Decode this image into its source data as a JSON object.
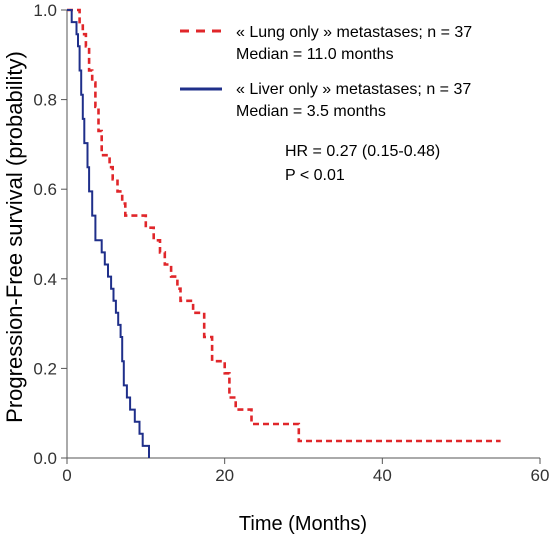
{
  "chart_data": {
    "type": "line",
    "subtype": "kaplan-meier-step",
    "xlabel": "Time (Months)",
    "ylabel": "Progression-Free survival  (probability)",
    "xlim": [
      0,
      60
    ],
    "ylim": [
      0,
      1.0
    ],
    "x_ticks": [
      0,
      20,
      40,
      60
    ],
    "x_tick_labels": [
      "0",
      "20",
      "40",
      "60"
    ],
    "y_ticks": [
      0.0,
      0.2,
      0.4,
      0.6,
      0.8,
      1.0
    ],
    "y_tick_labels": [
      "0.0",
      "0.2",
      "0.4",
      "0.6",
      "0.8",
      "1.0"
    ],
    "grid": false,
    "legend_position": "top-right",
    "series": [
      {
        "name": "« Lung only » metastases; n = 37",
        "median_label": "Median = 11.0 months",
        "color": "#e0262a",
        "line_style": "dashed",
        "points": [
          [
            0,
            1.0
          ],
          [
            1.6,
            1.0
          ],
          [
            1.6,
            0.973
          ],
          [
            2.0,
            0.973
          ],
          [
            2.0,
            0.946
          ],
          [
            2.4,
            0.946
          ],
          [
            2.4,
            0.919
          ],
          [
            2.8,
            0.919
          ],
          [
            2.8,
            0.865
          ],
          [
            3.2,
            0.865
          ],
          [
            3.2,
            0.838
          ],
          [
            3.6,
            0.838
          ],
          [
            3.6,
            0.784
          ],
          [
            4.0,
            0.784
          ],
          [
            4.0,
            0.73
          ],
          [
            4.4,
            0.73
          ],
          [
            4.4,
            0.676
          ],
          [
            5.4,
            0.676
          ],
          [
            5.4,
            0.649
          ],
          [
            5.8,
            0.649
          ],
          [
            5.8,
            0.622
          ],
          [
            6.4,
            0.622
          ],
          [
            6.4,
            0.595
          ],
          [
            7.0,
            0.595
          ],
          [
            7.0,
            0.568
          ],
          [
            7.4,
            0.568
          ],
          [
            7.4,
            0.541
          ],
          [
            10.0,
            0.541
          ],
          [
            10.0,
            0.514
          ],
          [
            11.0,
            0.514
          ],
          [
            11.0,
            0.486
          ],
          [
            11.8,
            0.486
          ],
          [
            11.8,
            0.459
          ],
          [
            12.4,
            0.459
          ],
          [
            12.4,
            0.432
          ],
          [
            13.2,
            0.432
          ],
          [
            13.2,
            0.405
          ],
          [
            14.0,
            0.405
          ],
          [
            14.0,
            0.378
          ],
          [
            14.4,
            0.378
          ],
          [
            14.4,
            0.351
          ],
          [
            16.0,
            0.351
          ],
          [
            16.0,
            0.324
          ],
          [
            17.4,
            0.324
          ],
          [
            17.4,
            0.27
          ],
          [
            18.4,
            0.27
          ],
          [
            18.4,
            0.216
          ],
          [
            20.0,
            0.216
          ],
          [
            20.0,
            0.189
          ],
          [
            20.6,
            0.189
          ],
          [
            20.6,
            0.135
          ],
          [
            21.4,
            0.135
          ],
          [
            21.4,
            0.108
          ],
          [
            23.4,
            0.108
          ],
          [
            23.4,
            0.076
          ],
          [
            29.4,
            0.076
          ],
          [
            29.4,
            0.038
          ],
          [
            55.0,
            0.038
          ]
        ]
      },
      {
        "name": "« Liver only » metastases; n = 37",
        "median_label": "Median = 3.5 months",
        "color": "#1f2f8a",
        "line_style": "solid",
        "points": [
          [
            0,
            1.0
          ],
          [
            0.6,
            1.0
          ],
          [
            0.6,
            0.973
          ],
          [
            1.2,
            0.973
          ],
          [
            1.2,
            0.946
          ],
          [
            1.4,
            0.946
          ],
          [
            1.4,
            0.919
          ],
          [
            1.6,
            0.919
          ],
          [
            1.6,
            0.865
          ],
          [
            1.8,
            0.865
          ],
          [
            1.8,
            0.811
          ],
          [
            2.0,
            0.811
          ],
          [
            2.0,
            0.757
          ],
          [
            2.2,
            0.757
          ],
          [
            2.2,
            0.703
          ],
          [
            2.6,
            0.703
          ],
          [
            2.6,
            0.649
          ],
          [
            2.8,
            0.649
          ],
          [
            2.8,
            0.595
          ],
          [
            3.2,
            0.595
          ],
          [
            3.2,
            0.541
          ],
          [
            3.6,
            0.541
          ],
          [
            3.6,
            0.486
          ],
          [
            4.4,
            0.486
          ],
          [
            4.4,
            0.459
          ],
          [
            4.8,
            0.459
          ],
          [
            4.8,
            0.432
          ],
          [
            5.2,
            0.432
          ],
          [
            5.2,
            0.405
          ],
          [
            5.6,
            0.405
          ],
          [
            5.6,
            0.378
          ],
          [
            5.9,
            0.378
          ],
          [
            5.9,
            0.351
          ],
          [
            6.2,
            0.351
          ],
          [
            6.2,
            0.324
          ],
          [
            6.5,
            0.324
          ],
          [
            6.5,
            0.297
          ],
          [
            6.8,
            0.297
          ],
          [
            6.8,
            0.27
          ],
          [
            7.0,
            0.27
          ],
          [
            7.0,
            0.216
          ],
          [
            7.2,
            0.216
          ],
          [
            7.2,
            0.162
          ],
          [
            7.6,
            0.162
          ],
          [
            7.6,
            0.135
          ],
          [
            8.0,
            0.135
          ],
          [
            8.0,
            0.108
          ],
          [
            8.6,
            0.108
          ],
          [
            8.6,
            0.081
          ],
          [
            9.2,
            0.081
          ],
          [
            9.2,
            0.054
          ],
          [
            9.6,
            0.054
          ],
          [
            9.6,
            0.027
          ],
          [
            10.4,
            0.027
          ],
          [
            10.4,
            0.0
          ]
        ]
      }
    ]
  },
  "annotation": {
    "hr_line": "HR = 0.27 (0.15-0.48)",
    "p_line": "P < 0.01"
  }
}
